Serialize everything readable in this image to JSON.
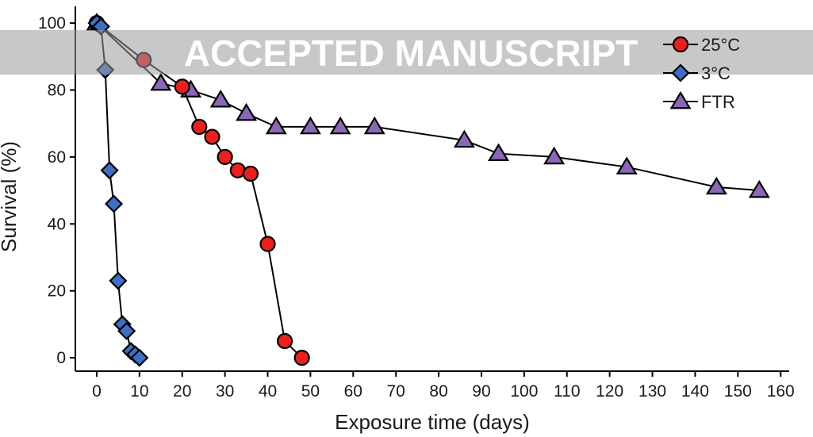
{
  "watermark": {
    "text": "ACCEPTED MANUSCRIPT"
  },
  "chart_data": {
    "type": "line",
    "xlabel": "Exposure time (days)",
    "ylabel": "Survival (%)",
    "xlim": [
      -5,
      162
    ],
    "ylim": [
      -4,
      105
    ],
    "xticks": [
      0,
      10,
      20,
      30,
      40,
      50,
      60,
      70,
      80,
      90,
      100,
      110,
      120,
      130,
      140,
      150,
      160
    ],
    "yticks": [
      0,
      20,
      40,
      60,
      80,
      100
    ],
    "grid": false,
    "legend_position": "top-right",
    "series": [
      {
        "name": "25°C",
        "marker": "circle",
        "color": "#e8201f",
        "x": [
          0,
          11,
          20,
          24,
          27,
          30,
          33,
          36,
          40,
          44,
          48
        ],
        "y": [
          100,
          89,
          81,
          69,
          66,
          60,
          56,
          55,
          34,
          5,
          0
        ]
      },
      {
        "name": "3°C",
        "marker": "diamond",
        "color": "#3e6fc4",
        "x": [
          0,
          1,
          2,
          3,
          4,
          5,
          6,
          7,
          8,
          9,
          10
        ],
        "y": [
          100,
          99,
          86,
          56,
          46,
          23,
          10,
          8,
          2,
          1,
          0
        ]
      },
      {
        "name": "FTR",
        "marker": "triangle",
        "color": "#8a68b5",
        "x": [
          0,
          15,
          22,
          29,
          35,
          42,
          50,
          57,
          65,
          86,
          94,
          107,
          124,
          145,
          155
        ],
        "y": [
          100,
          82,
          80,
          77,
          73,
          69,
          69,
          69,
          69,
          65,
          61,
          60,
          57,
          51,
          50
        ]
      }
    ]
  }
}
